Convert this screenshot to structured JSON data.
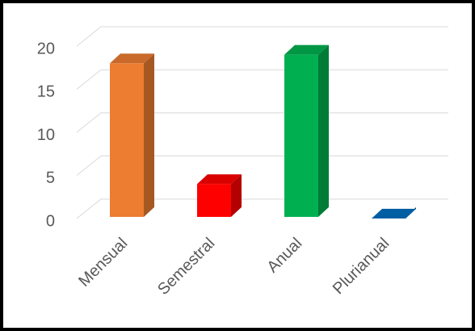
{
  "chart_data": {
    "type": "bar3d",
    "categories": [
      "Mensual",
      "Semestral",
      "Anual",
      "Plurianual"
    ],
    "values": [
      18,
      4,
      19,
      0
    ],
    "colors": [
      "#ED7D31",
      "#FF0000",
      "#00B050",
      "#0070C0"
    ],
    "ylim": [
      0,
      20
    ],
    "yticks": [
      0,
      5,
      10,
      15,
      20
    ],
    "grid": true
  }
}
